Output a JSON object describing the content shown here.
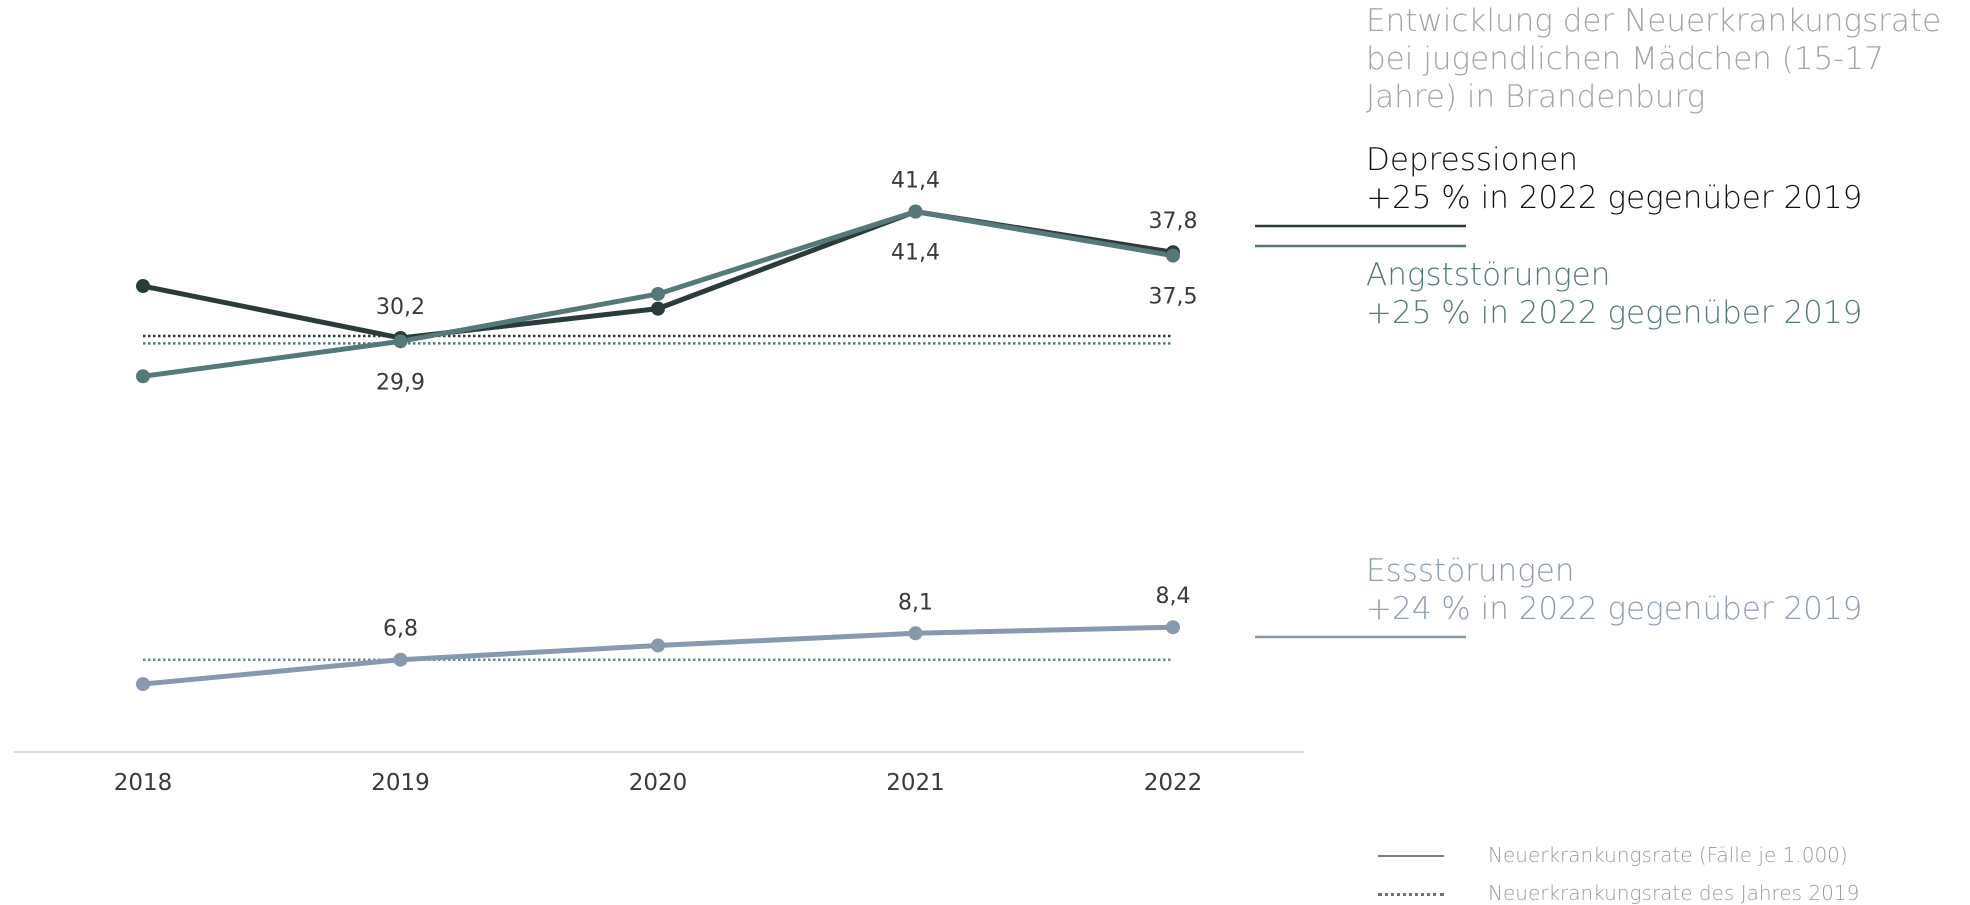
{
  "chart_data": {
    "type": "line",
    "title": "Entwicklung der Neuerkrankungsrate bei jugendlichen Mädchen (15-17 Jahre) in Brandenburg",
    "x": [
      "2018",
      "2019",
      "2020",
      "2021",
      "2022"
    ],
    "ylabel": "",
    "grid": false,
    "series": [
      {
        "name": "Depressionen",
        "change_text": "+25 % in 2022 gegenüber 2019",
        "color": "#2b3b3b",
        "values": [
          34.8,
          30.2,
          32.8,
          41.4,
          37.8
        ],
        "data_labels": [
          "",
          "30,2",
          "",
          "41,4",
          "37,8"
        ],
        "baseline_2019": 30.2
      },
      {
        "name": "Angststörungen",
        "change_text": "+25 % in 2022 gegenüber 2019",
        "color": "#567878",
        "values": [
          26.8,
          29.9,
          34.1,
          41.4,
          37.5
        ],
        "data_labels": [
          "",
          "29,9",
          "",
          "41,4",
          "37,5"
        ],
        "baseline_2019": 29.9
      },
      {
        "name": "Essstörungen",
        "change_text": "+24 % in 2022 gegenüber 2019",
        "color": "#8898ad",
        "values": [
          5.6,
          6.8,
          7.5,
          8.1,
          8.4
        ],
        "data_labels": [
          "",
          "6,8",
          "",
          "8,1",
          "8,4"
        ],
        "baseline_2019": 6.8
      }
    ],
    "legend": {
      "placement": "bottom-right",
      "items": [
        {
          "style": "solid",
          "label": "Neuerkrankungsrate (Fälle je 1.000)"
        },
        {
          "style": "dotted",
          "label": "Neuerkrankungsrate des Jahres 2019"
        }
      ]
    }
  }
}
